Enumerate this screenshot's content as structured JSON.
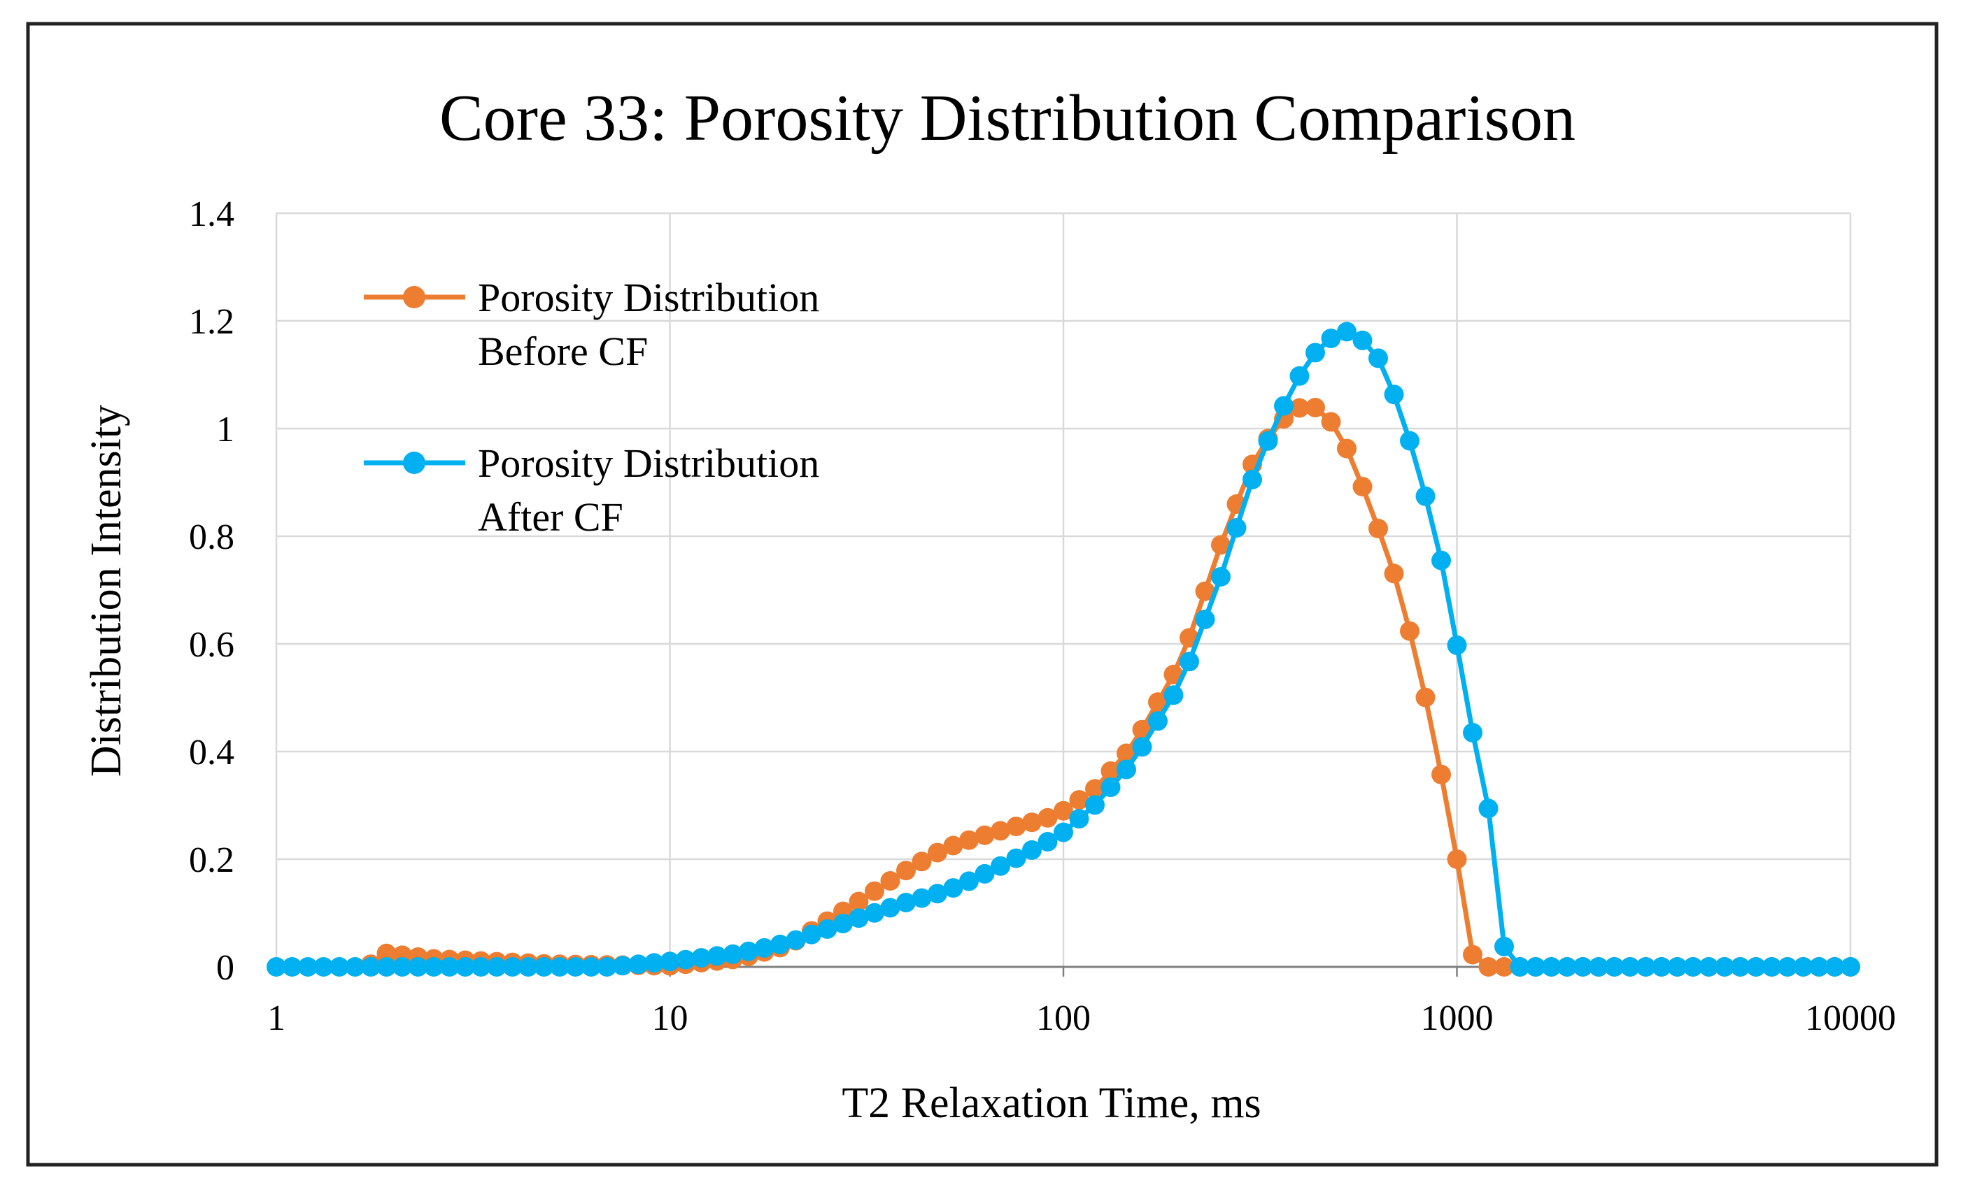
{
  "chart_data": {
    "type": "line",
    "title": "Core 33: Porosity Distribution Comparison",
    "xlabel": "T2 Relaxation Time, ms",
    "ylabel": "Distribution Intensity",
    "x_scale": "log",
    "xlim": [
      1,
      10000
    ],
    "ylim": [
      0,
      1.4
    ],
    "x_ticks": [
      1,
      10,
      100,
      1000,
      10000
    ],
    "x_tick_labels": [
      "1",
      "10",
      "100",
      "1000",
      "10000"
    ],
    "y_ticks": [
      0,
      0.2,
      0.4,
      0.6,
      0.8,
      1,
      1.2,
      1.4
    ],
    "y_tick_labels": [
      "0",
      "0.2",
      "0.4",
      "0.6",
      "0.8",
      "1",
      "1.2",
      "1.4"
    ],
    "grid": true,
    "legend_position": "top-left",
    "point_density_per_decade": 25,
    "series": [
      {
        "name": "Porosity Distribution Before CF",
        "legend_lines": [
          "Porosity Distribution",
          "Before CF"
        ],
        "color": "#ED7D31",
        "points": [
          [
            1.7,
            0
          ],
          [
            1.9,
            0.025
          ],
          [
            2.5,
            0.015
          ],
          [
            5,
            0.005
          ],
          [
            10,
            0.002
          ],
          [
            15,
            0.015
          ],
          [
            20,
            0.04
          ],
          [
            30,
            0.12
          ],
          [
            40,
            0.18
          ],
          [
            50,
            0.22
          ],
          [
            60,
            0.24
          ],
          [
            75,
            0.26
          ],
          [
            90,
            0.275
          ],
          [
            100,
            0.29
          ],
          [
            120,
            0.33
          ],
          [
            150,
            0.41
          ],
          [
            200,
            0.57
          ],
          [
            250,
            0.78
          ],
          [
            300,
            0.93
          ],
          [
            350,
            1.01
          ],
          [
            420,
            1.05
          ],
          [
            500,
            1.0
          ],
          [
            600,
            0.86
          ],
          [
            700,
            0.72
          ],
          [
            800,
            0.56
          ],
          [
            900,
            0.38
          ],
          [
            1000,
            0.2
          ],
          [
            1080,
            0.03
          ],
          [
            1150,
            0
          ]
        ]
      },
      {
        "name": "Porosity Distribution After CF",
        "legend_lines": [
          "Porosity Distribution",
          "After CF"
        ],
        "color": "#00B0F0",
        "points": [
          [
            1,
            0
          ],
          [
            7,
            0
          ],
          [
            10,
            0.01
          ],
          [
            15,
            0.025
          ],
          [
            20,
            0.045
          ],
          [
            30,
            0.09
          ],
          [
            40,
            0.12
          ],
          [
            50,
            0.14
          ],
          [
            60,
            0.165
          ],
          [
            75,
            0.2
          ],
          [
            90,
            0.23
          ],
          [
            100,
            0.25
          ],
          [
            120,
            0.3
          ],
          [
            150,
            0.38
          ],
          [
            200,
            0.53
          ],
          [
            250,
            0.72
          ],
          [
            300,
            0.9
          ],
          [
            350,
            1.02
          ],
          [
            420,
            1.13
          ],
          [
            500,
            1.18
          ],
          [
            550,
            1.18
          ],
          [
            650,
            1.12
          ],
          [
            750,
            0.99
          ],
          [
            850,
            0.85
          ],
          [
            950,
            0.7
          ],
          [
            1050,
            0.5
          ],
          [
            1200,
            0.3
          ],
          [
            1300,
            0.06
          ],
          [
            1350,
            0
          ]
        ]
      }
    ]
  }
}
